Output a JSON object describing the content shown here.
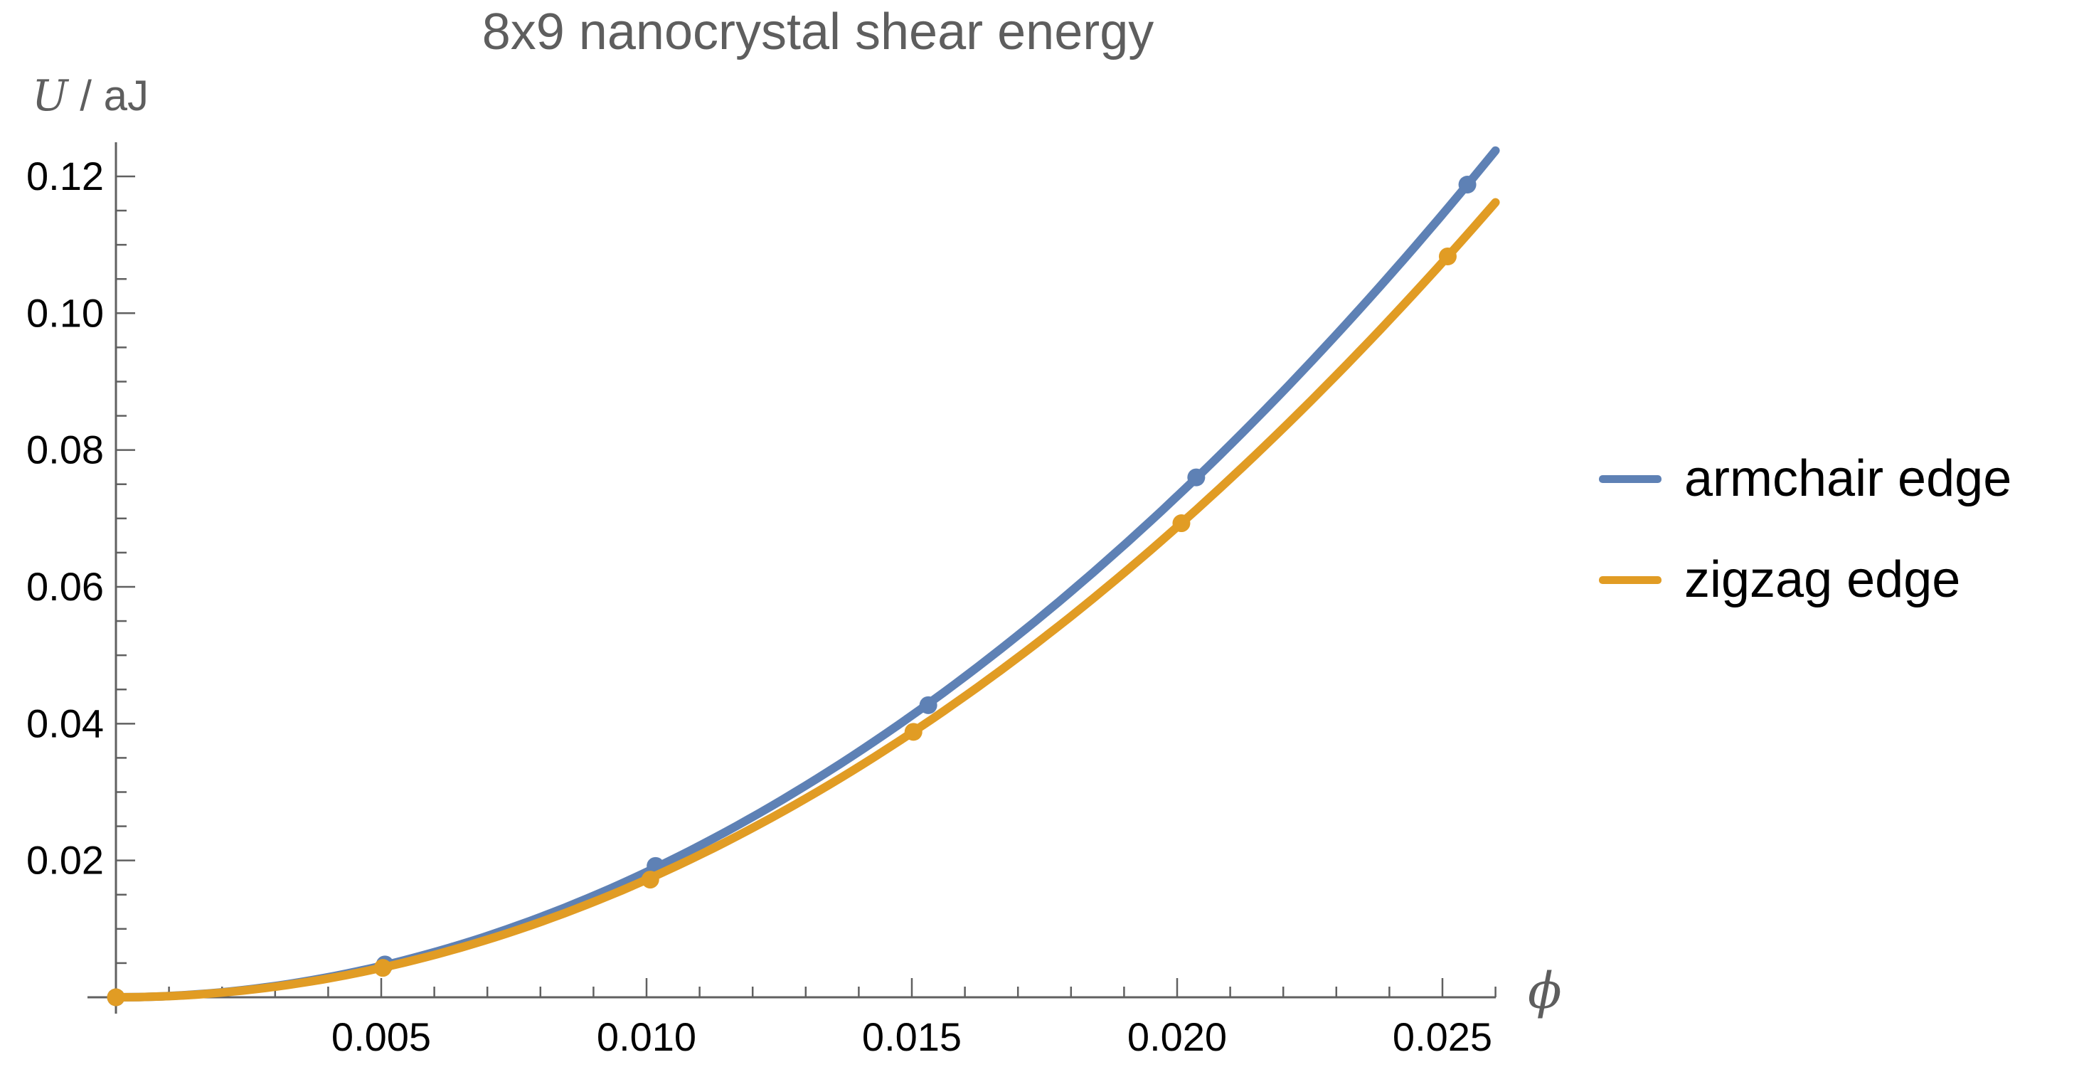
{
  "chart_data": {
    "type": "line",
    "title": "8x9 nanocrystal shear energy",
    "xlabel": "ϕ",
    "ylabel": "U / aJ",
    "xlim": [
      0,
      0.026
    ],
    "ylim": [
      0,
      0.125
    ],
    "grid": false,
    "legend_position": "right-outside",
    "x_major_ticks": [
      0.005,
      0.01,
      0.015,
      0.02,
      0.025
    ],
    "x_tick_labels": [
      "0.005",
      "0.010",
      "0.015",
      "0.020",
      "0.025"
    ],
    "x_minor_tick_step": 0.001,
    "y_major_ticks": [
      0.02,
      0.04,
      0.06,
      0.08,
      0.1,
      0.12
    ],
    "y_tick_labels": [
      "0.02",
      "0.04",
      "0.06",
      "0.08",
      "0.10",
      "0.12"
    ],
    "y_minor_tick_step": 0.005,
    "series": [
      {
        "name": "armchair edge",
        "color": "#5e81b5",
        "x": [
          0,
          0.00507,
          0.01017,
          0.01531,
          0.02036,
          0.02547
        ],
        "y": [
          0,
          0.0048,
          0.0192,
          0.0427,
          0.076,
          0.1188
        ],
        "fit_quadratic_k": 183.1
      },
      {
        "name": "zigzag edge",
        "color": "#e19c24",
        "x": [
          0,
          0.00503,
          0.01007,
          0.01503,
          0.02008,
          0.0251
        ],
        "y": [
          0,
          0.0043,
          0.0172,
          0.0388,
          0.0693,
          0.1083
        ],
        "fit_quadratic_k": 171.9
      }
    ]
  },
  "labels": {
    "y_var": "U",
    "y_rest": " / aJ"
  },
  "style": {
    "axis_color": "#606060",
    "tick_label_color": "#000000",
    "title_color": "#5e5e5e"
  }
}
